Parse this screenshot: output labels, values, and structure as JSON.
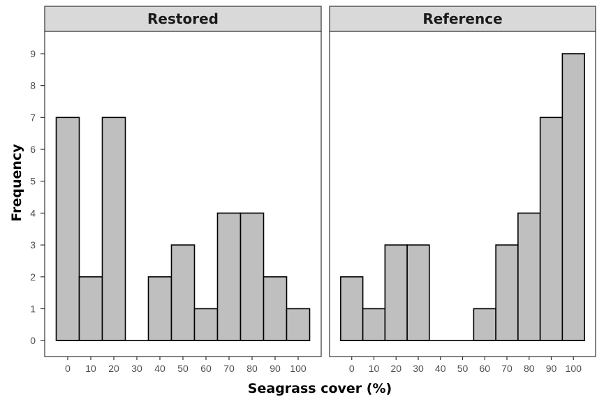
{
  "chart_data": {
    "type": "bar",
    "xlabel": "Seagrass cover (%)",
    "ylabel": "Frequency",
    "ylim": [
      -0.5,
      9.7
    ],
    "yticks": [
      0,
      1,
      2,
      3,
      4,
      5,
      6,
      7,
      8,
      9
    ],
    "xlim": [
      -10,
      110
    ],
    "xticks": [
      0,
      10,
      20,
      30,
      40,
      50,
      60,
      70,
      80,
      90,
      100
    ],
    "categories": [
      0,
      10,
      20,
      30,
      40,
      50,
      60,
      70,
      80,
      90,
      100
    ],
    "bin_width": 10,
    "bar_fill": "#bfbfbf",
    "bar_stroke": "#000000",
    "strip_fill": "#d9d9d9",
    "grid": false,
    "panels": [
      {
        "label": "Restored",
        "values": [
          7,
          2,
          7,
          0,
          2,
          3,
          1,
          4,
          4,
          2,
          1
        ]
      },
      {
        "label": "Reference",
        "values": [
          2,
          1,
          3,
          3,
          0,
          0,
          1,
          3,
          4,
          7,
          9
        ]
      }
    ]
  }
}
